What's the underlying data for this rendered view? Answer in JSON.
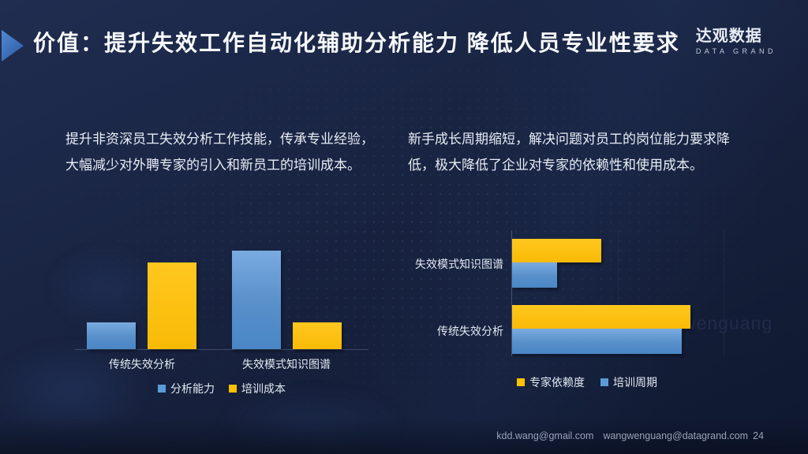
{
  "header": {
    "title": "价值：提升失效工作自动化辅助分析能力 降低人员专业性要求",
    "logo": {
      "name": "达观数据",
      "subtitle": "DATA GRAND"
    }
  },
  "paragraphs": {
    "left": {
      "lines": [
        "提升非资深员工失效分析工作技能，传承专业经验，",
        "大幅减少对外聘专家的引入和新员工的培训成本。"
      ]
    },
    "right": {
      "lines": [
        "新手成长周期缩短，解决问题对员工的岗位能力要求降",
        "低，极大降低了企业对专家的依赖性和使用成本。"
      ]
    }
  },
  "chart_data": [
    {
      "type": "bar",
      "orientation": "vertical",
      "title": "",
      "categories": [
        "传统失效分析",
        "失效模式知识图谱"
      ],
      "series": [
        {
          "name": "分析能力",
          "color": "#5B9BD5",
          "values": [
            27,
            100
          ]
        },
        {
          "name": "培训成本",
          "color": "#FFC000",
          "values": [
            88,
            27
          ]
        }
      ],
      "ylim": [
        0,
        100
      ],
      "grid": false,
      "legend_position": "bottom"
    },
    {
      "type": "bar",
      "orientation": "horizontal",
      "title": "",
      "categories": [
        "失效模式知识图谱",
        "传统失效分析"
      ],
      "series": [
        {
          "name": "专家依赖度",
          "color": "#FFC000",
          "values": [
            50,
            100
          ]
        },
        {
          "name": "培训周期",
          "color": "#5B9BD5",
          "values": [
            25,
            95
          ]
        }
      ],
      "xlim": [
        0,
        100
      ],
      "grid": true,
      "legend_position": "bottom"
    }
  ],
  "watermark": "wangwenguang",
  "footer": {
    "email1": "kdd.wang@gmail.com",
    "email2": "wangwenguang@datagrand.com",
    "page_number": "24"
  },
  "colors": {
    "accent_blue": "#5B9BD5",
    "accent_yellow": "#FFC000",
    "arrow_blue": "#3A6CB4"
  }
}
